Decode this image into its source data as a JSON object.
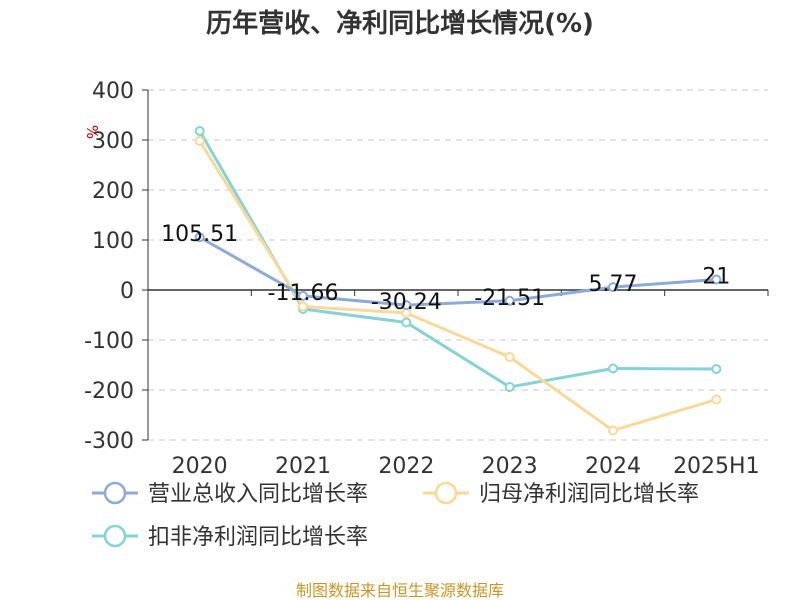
{
  "chart_data": {
    "type": "line",
    "title": "历年营收、净利同比增长情况(%)",
    "ylabel": "%",
    "categories": [
      "2020",
      "2021",
      "2022",
      "2023",
      "2024",
      "2025H1"
    ],
    "ylim": [
      -300,
      400
    ],
    "yticks": [
      400,
      300,
      200,
      100,
      0,
      -100,
      -200,
      -300
    ],
    "grid": true,
    "legend_position": "bottom-left",
    "series": [
      {
        "name": "营业总收入同比增长率",
        "color": "#8eaad8",
        "values": [
          105.51,
          -11.66,
          -30.24,
          -21.51,
          5.77,
          21
        ],
        "labels": [
          "105.51",
          "-11.66",
          "-30.24",
          "-21.51",
          "5.77",
          "21"
        ]
      },
      {
        "name": "归母净利润同比增长率",
        "color": "#f8d99a",
        "values": [
          298,
          -33,
          -46,
          -134,
          -281,
          -219
        ]
      },
      {
        "name": "扣非净利润同比增长率",
        "color": "#86d3d6",
        "values": [
          318,
          -38,
          -65,
          -194,
          -157,
          -158
        ]
      }
    ],
    "source": "制图数据来自恒生聚源数据库"
  }
}
